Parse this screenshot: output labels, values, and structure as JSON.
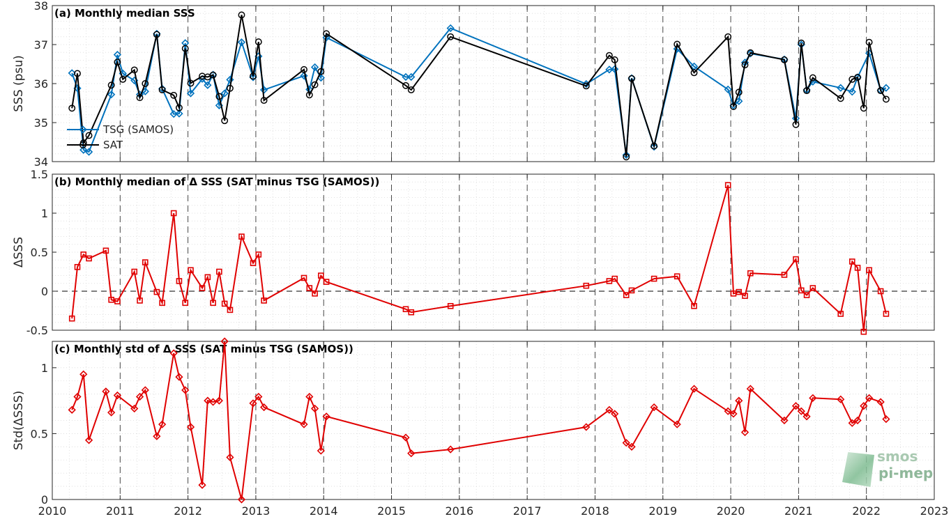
{
  "colors": {
    "tsg": "#0072BD",
    "sat": "#000000",
    "delta": "#E00000",
    "grid": "#bdbdbd"
  },
  "x_ticks": [
    "2010",
    "2011",
    "2012",
    "2013",
    "2014",
    "2015",
    "2016",
    "2017",
    "2018",
    "2019",
    "2020",
    "2021",
    "2022",
    "2023"
  ],
  "logo": {
    "line1": "smos",
    "line2": "pi-mep"
  },
  "chart_data": [
    {
      "type": "line",
      "title": "(a) Monthly median SSS",
      "ylabel": "SSS (psu)",
      "xlim": [
        2010,
        2023
      ],
      "ylim": [
        34,
        38
      ],
      "yticks": [
        "34",
        "35",
        "36",
        "37",
        "38"
      ],
      "legend_position": "bottom-left",
      "series": [
        {
          "name": "TSG (SAMOS)",
          "marker": "diamond",
          "points": [
            [
              2010.29,
              36.27
            ],
            [
              2010.37,
              35.88
            ],
            [
              2010.46,
              34.3
            ],
            [
              2010.54,
              34.25
            ],
            [
              2010.87,
              35.72
            ],
            [
              2010.96,
              36.74
            ],
            [
              2011.04,
              36.26
            ],
            [
              2011.21,
              36.08
            ],
            [
              2011.29,
              35.72
            ],
            [
              2011.37,
              35.8
            ],
            [
              2011.54,
              37.28
            ],
            [
              2011.62,
              35.87
            ],
            [
              2011.79,
              35.22
            ],
            [
              2011.87,
              35.23
            ],
            [
              2011.96,
              37.04
            ],
            [
              2012.04,
              35.75
            ],
            [
              2012.21,
              36.12
            ],
            [
              2012.29,
              35.96
            ],
            [
              2012.37,
              36.23
            ],
            [
              2012.46,
              35.44
            ],
            [
              2012.54,
              35.75
            ],
            [
              2012.62,
              36.1
            ],
            [
              2012.79,
              37.06
            ],
            [
              2012.96,
              36.16
            ],
            [
              2013.04,
              36.7
            ],
            [
              2013.12,
              35.84
            ],
            [
              2013.71,
              36.2
            ],
            [
              2013.79,
              35.85
            ],
            [
              2013.87,
              36.42
            ],
            [
              2013.96,
              36.15
            ],
            [
              2014.04,
              37.18
            ],
            [
              2015.21,
              36.17
            ],
            [
              2015.29,
              36.17
            ],
            [
              2015.87,
              37.42
            ],
            [
              2017.87,
              35.99
            ],
            [
              2018.21,
              36.36
            ],
            [
              2018.29,
              36.37
            ],
            [
              2018.46,
              34.17
            ],
            [
              2018.54,
              36.14
            ],
            [
              2018.87,
              34.38
            ],
            [
              2019.21,
              36.89
            ],
            [
              2019.46,
              36.44
            ],
            [
              2019.96,
              35.85
            ],
            [
              2020.04,
              35.44
            ],
            [
              2020.12,
              35.55
            ],
            [
              2020.21,
              36.54
            ],
            [
              2020.29,
              36.77
            ],
            [
              2020.79,
              36.62
            ],
            [
              2020.96,
              35.11
            ],
            [
              2021.04,
              37.0
            ],
            [
              2021.12,
              35.84
            ],
            [
              2021.21,
              36.05
            ],
            [
              2021.62,
              35.89
            ],
            [
              2021.79,
              35.79
            ],
            [
              2021.87,
              36.16
            ],
            [
              2022.04,
              36.78
            ],
            [
              2022.21,
              35.83
            ],
            [
              2022.29,
              35.89
            ]
          ]
        },
        {
          "name": "SAT",
          "marker": "circle",
          "points": [
            [
              2010.29,
              35.37
            ],
            [
              2010.37,
              36.26
            ],
            [
              2010.46,
              34.48
            ],
            [
              2010.54,
              34.67
            ],
            [
              2010.87,
              35.96
            ],
            [
              2010.96,
              36.55
            ],
            [
              2011.04,
              36.11
            ],
            [
              2011.21,
              36.35
            ],
            [
              2011.29,
              35.64
            ],
            [
              2011.37,
              36.0
            ],
            [
              2011.54,
              37.26
            ],
            [
              2011.62,
              35.84
            ],
            [
              2011.79,
              35.7
            ],
            [
              2011.87,
              35.38
            ],
            [
              2011.96,
              36.9
            ],
            [
              2012.04,
              36.01
            ],
            [
              2012.21,
              36.19
            ],
            [
              2012.29,
              36.17
            ],
            [
              2012.37,
              36.22
            ],
            [
              2012.46,
              35.67
            ],
            [
              2012.54,
              35.05
            ],
            [
              2012.62,
              35.88
            ],
            [
              2012.79,
              37.76
            ],
            [
              2012.96,
              36.19
            ],
            [
              2013.04,
              37.07
            ],
            [
              2013.12,
              35.57
            ],
            [
              2013.71,
              36.36
            ],
            [
              2013.79,
              35.71
            ],
            [
              2013.87,
              35.97
            ],
            [
              2013.96,
              36.31
            ],
            [
              2014.04,
              37.28
            ],
            [
              2015.21,
              35.95
            ],
            [
              2015.29,
              35.84
            ],
            [
              2015.87,
              37.2
            ],
            [
              2017.87,
              35.94
            ],
            [
              2018.21,
              36.72
            ],
            [
              2018.29,
              36.61
            ],
            [
              2018.46,
              34.12
            ],
            [
              2018.54,
              36.13
            ],
            [
              2018.87,
              34.4
            ],
            [
              2019.21,
              37.01
            ],
            [
              2019.46,
              36.28
            ],
            [
              2019.96,
              37.2
            ],
            [
              2020.04,
              35.41
            ],
            [
              2020.12,
              35.78
            ],
            [
              2020.21,
              36.48
            ],
            [
              2020.29,
              36.79
            ],
            [
              2020.79,
              36.61
            ],
            [
              2020.96,
              34.95
            ],
            [
              2021.04,
              37.04
            ],
            [
              2021.12,
              35.82
            ],
            [
              2021.21,
              36.15
            ],
            [
              2021.62,
              35.62
            ],
            [
              2021.79,
              36.11
            ],
            [
              2021.87,
              36.16
            ],
            [
              2021.96,
              35.37
            ],
            [
              2022.04,
              37.06
            ],
            [
              2022.21,
              35.82
            ],
            [
              2022.29,
              35.6
            ]
          ]
        }
      ]
    },
    {
      "type": "line",
      "title": "(b) Monthly median of Δ SSS (SAT minus TSG (SAMOS))",
      "ylabel": "ΔSSS",
      "xlim": [
        2010,
        2023
      ],
      "ylim": [
        -0.5,
        1.5
      ],
      "yticks": [
        "-0.5",
        "0",
        "0.5",
        "1",
        "1.5"
      ],
      "reference_line": 0,
      "series": [
        {
          "marker": "square",
          "points": [
            [
              2010.29,
              -0.35
            ],
            [
              2010.37,
              0.31
            ],
            [
              2010.46,
              0.47
            ],
            [
              2010.54,
              0.42
            ],
            [
              2010.79,
              0.52
            ],
            [
              2010.87,
              -0.11
            ],
            [
              2010.96,
              -0.13
            ],
            [
              2011.21,
              0.25
            ],
            [
              2011.29,
              -0.12
            ],
            [
              2011.37,
              0.37
            ],
            [
              2011.54,
              -0.01
            ],
            [
              2011.62,
              -0.15
            ],
            [
              2011.79,
              1.0
            ],
            [
              2011.87,
              0.13
            ],
            [
              2011.96,
              -0.15
            ],
            [
              2012.04,
              0.27
            ],
            [
              2012.21,
              0.04
            ],
            [
              2012.29,
              0.18
            ],
            [
              2012.37,
              -0.15
            ],
            [
              2012.46,
              0.25
            ],
            [
              2012.54,
              -0.16
            ],
            [
              2012.62,
              -0.24
            ],
            [
              2012.79,
              0.7
            ],
            [
              2012.96,
              0.36
            ],
            [
              2013.04,
              0.47
            ],
            [
              2013.12,
              -0.12
            ],
            [
              2013.71,
              0.17
            ],
            [
              2013.79,
              0.04
            ],
            [
              2013.87,
              -0.03
            ],
            [
              2013.96,
              0.2
            ],
            [
              2014.04,
              0.12
            ],
            [
              2015.21,
              -0.23
            ],
            [
              2015.29,
              -0.27
            ],
            [
              2015.87,
              -0.19
            ],
            [
              2017.87,
              0.07
            ],
            [
              2018.21,
              0.13
            ],
            [
              2018.29,
              0.16
            ],
            [
              2018.46,
              -0.05
            ],
            [
              2018.54,
              0.01
            ],
            [
              2018.87,
              0.16
            ],
            [
              2019.21,
              0.19
            ],
            [
              2019.46,
              -0.19
            ],
            [
              2019.96,
              1.36
            ],
            [
              2020.04,
              -0.03
            ],
            [
              2020.12,
              -0.01
            ],
            [
              2020.21,
              -0.06
            ],
            [
              2020.29,
              0.23
            ],
            [
              2020.79,
              0.21
            ],
            [
              2020.96,
              0.41
            ],
            [
              2021.04,
              0.01
            ],
            [
              2021.12,
              -0.05
            ],
            [
              2021.21,
              0.04
            ],
            [
              2021.62,
              -0.29
            ],
            [
              2021.79,
              0.38
            ],
            [
              2021.87,
              0.3
            ],
            [
              2021.96,
              -0.52
            ],
            [
              2022.04,
              0.27
            ],
            [
              2022.21,
              0.0
            ],
            [
              2022.29,
              -0.29
            ]
          ]
        }
      ]
    },
    {
      "type": "line",
      "title": "(c) Monthly std of Δ SSS (SAT minus TSG (SAMOS))",
      "ylabel": "Std(ΔSSS)",
      "xlim": [
        2010,
        2023
      ],
      "ylim": [
        0,
        1.2
      ],
      "yticks": [
        "0",
        "0.5",
        "1"
      ],
      "series": [
        {
          "marker": "diamond",
          "points": [
            [
              2010.29,
              0.68
            ],
            [
              2010.37,
              0.78
            ],
            [
              2010.46,
              0.95
            ],
            [
              2010.54,
              0.45
            ],
            [
              2010.79,
              0.82
            ],
            [
              2010.87,
              0.66
            ],
            [
              2010.96,
              0.79
            ],
            [
              2011.21,
              0.69
            ],
            [
              2011.29,
              0.78
            ],
            [
              2011.37,
              0.83
            ],
            [
              2011.54,
              0.48
            ],
            [
              2011.62,
              0.57
            ],
            [
              2011.79,
              1.11
            ],
            [
              2011.87,
              0.93
            ],
            [
              2011.96,
              0.83
            ],
            [
              2012.04,
              0.55
            ],
            [
              2012.21,
              0.11
            ],
            [
              2012.29,
              0.75
            ],
            [
              2012.37,
              0.74
            ],
            [
              2012.46,
              0.75
            ],
            [
              2012.54,
              1.2
            ],
            [
              2012.62,
              0.32
            ],
            [
              2012.79,
              0.0
            ],
            [
              2012.96,
              0.73
            ],
            [
              2013.04,
              0.78
            ],
            [
              2013.12,
              0.7
            ],
            [
              2013.71,
              0.57
            ],
            [
              2013.79,
              0.78
            ],
            [
              2013.87,
              0.69
            ],
            [
              2013.96,
              0.37
            ],
            [
              2014.04,
              0.63
            ],
            [
              2015.21,
              0.47
            ],
            [
              2015.29,
              0.35
            ],
            [
              2015.87,
              0.38
            ],
            [
              2017.87,
              0.55
            ],
            [
              2018.21,
              0.68
            ],
            [
              2018.29,
              0.65
            ],
            [
              2018.46,
              0.43
            ],
            [
              2018.54,
              0.4
            ],
            [
              2018.87,
              0.7
            ],
            [
              2019.21,
              0.57
            ],
            [
              2019.46,
              0.84
            ],
            [
              2019.96,
              0.67
            ],
            [
              2020.04,
              0.65
            ],
            [
              2020.12,
              0.75
            ],
            [
              2020.21,
              0.51
            ],
            [
              2020.29,
              0.84
            ],
            [
              2020.79,
              0.6
            ],
            [
              2020.96,
              0.71
            ],
            [
              2021.04,
              0.67
            ],
            [
              2021.12,
              0.63
            ],
            [
              2021.21,
              0.77
            ],
            [
              2021.62,
              0.76
            ],
            [
              2021.79,
              0.58
            ],
            [
              2021.87,
              0.6
            ],
            [
              2021.96,
              0.71
            ],
            [
              2022.04,
              0.77
            ],
            [
              2022.21,
              0.74
            ],
            [
              2022.29,
              0.61
            ]
          ]
        }
      ]
    }
  ]
}
